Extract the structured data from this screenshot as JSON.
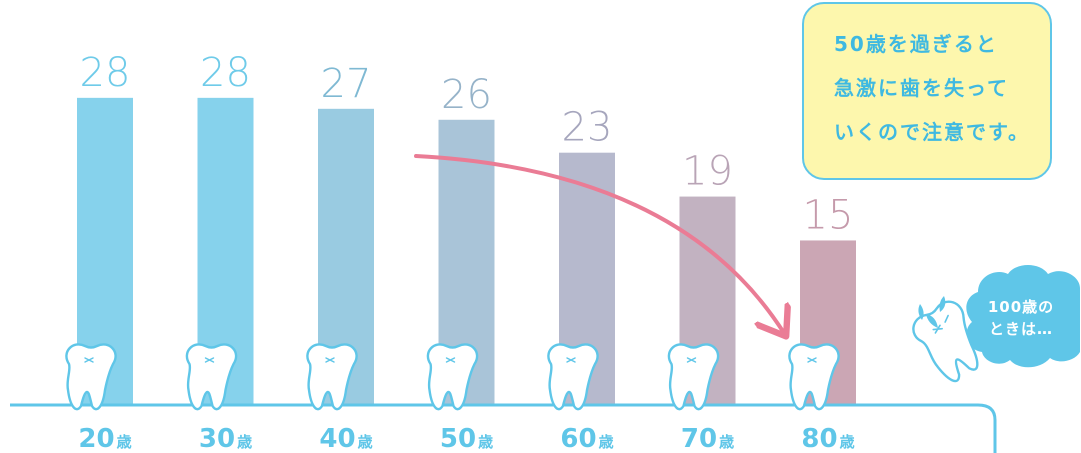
{
  "chart_data": {
    "type": "bar",
    "categories": [
      "20",
      "30",
      "40",
      "50",
      "60",
      "70",
      "80"
    ],
    "category_unit": "歳",
    "values": [
      28,
      28,
      27,
      26,
      23,
      19,
      15
    ],
    "bar_colors": [
      "#86d2ec",
      "#86d2ec",
      "#99cbe1",
      "#a9c4d8",
      "#b6b9cd",
      "#c2b2c1",
      "#cba6b4"
    ],
    "label_colors": [
      "#6fcbe9",
      "#6fcbe9",
      "#7fb9d3",
      "#96b3c9",
      "#a6a6bd",
      "#b9a4b6",
      "#c59aab"
    ],
    "ylim": [
      0,
      32
    ],
    "trend_arrow_color": "#ea7c95",
    "baseline_color": "#5fc6e8"
  },
  "callout": {
    "lines": [
      "50歳を過ぎると",
      "急激に歯を失って",
      "いくので注意です。"
    ],
    "background": "#fdf7ad",
    "border": "#5fc6e8",
    "text_color": "#3fb9e1"
  },
  "bubble": {
    "lines": [
      "100歳の",
      "ときは…"
    ],
    "color": "#5fc6e8"
  },
  "tooth": {
    "fill": "#ffffff",
    "stroke": "#5fc6e8"
  }
}
